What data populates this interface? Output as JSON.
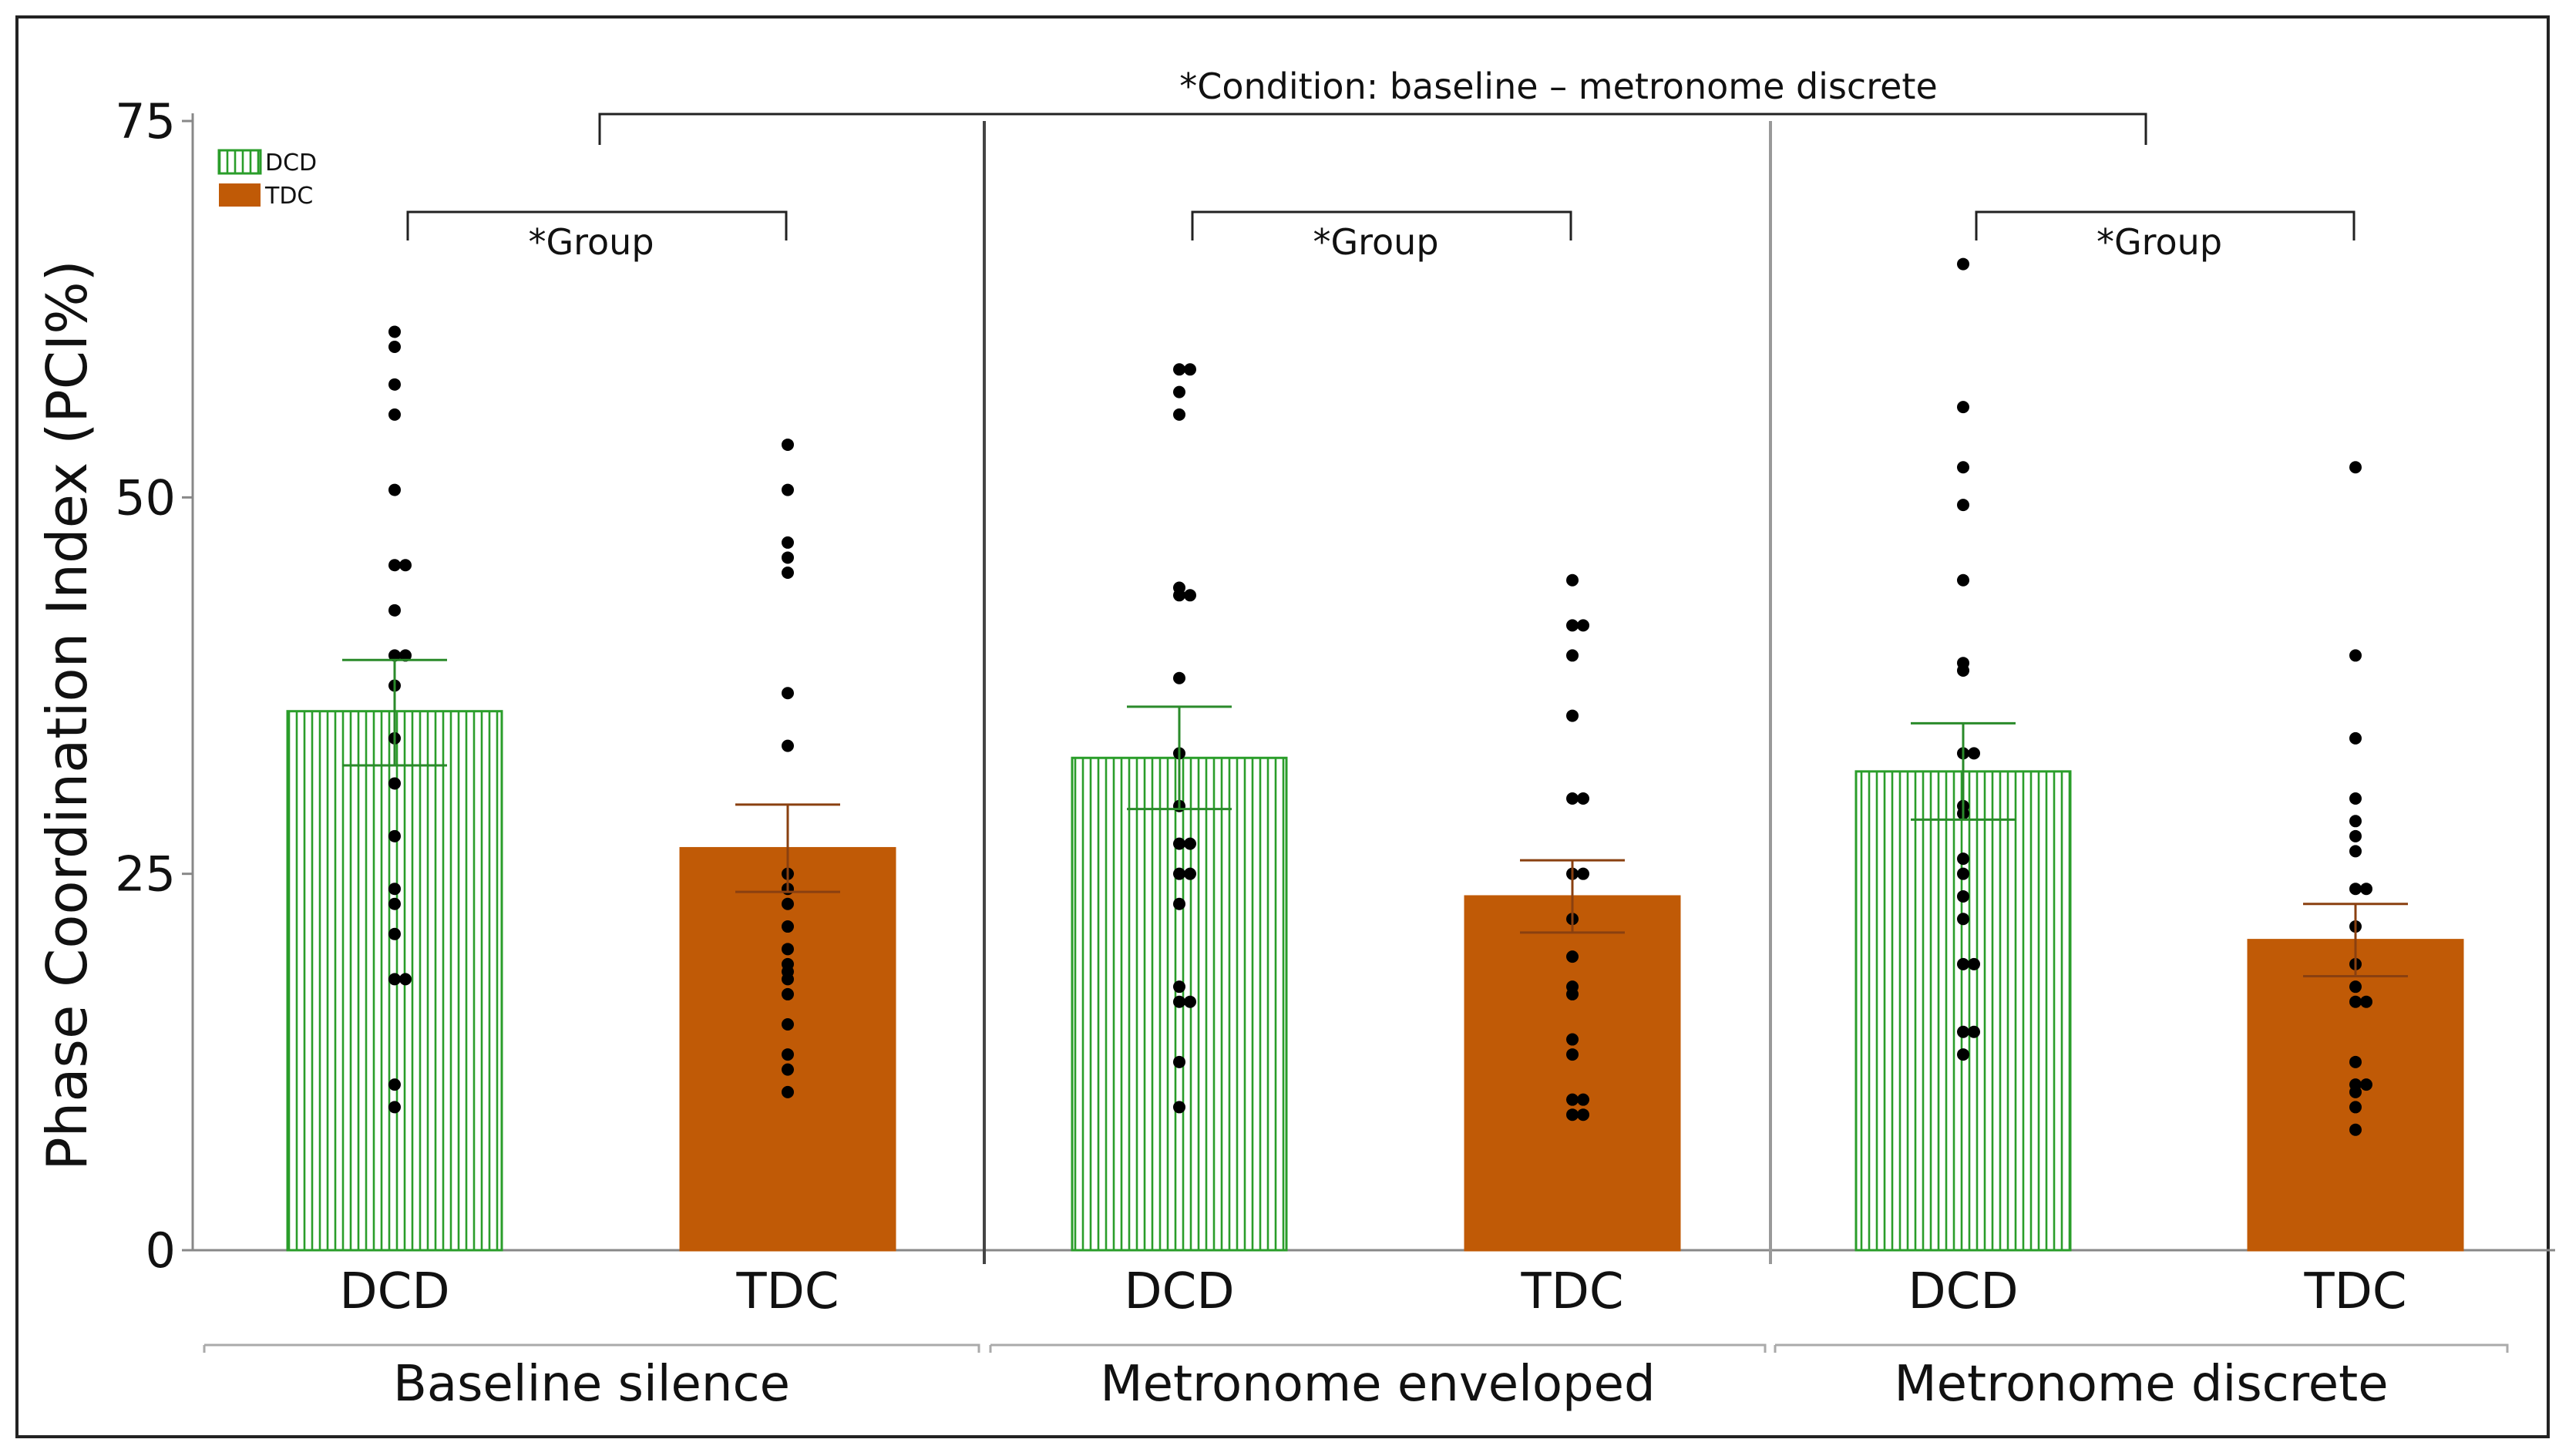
{
  "chart_data": {
    "type": "bar",
    "ylabel": "Phase Coordination Index (PCI%)",
    "xlabel": "",
    "ylim": [
      0,
      75
    ],
    "yticks": [
      "0",
      "25",
      "50",
      "75"
    ],
    "groups": [
      "Baseline silence",
      "Metronome enveloped",
      "Metronome discrete"
    ],
    "categories": [
      "DCD",
      "TDC"
    ],
    "legend": {
      "position": "top-left",
      "entries": [
        "DCD",
        "TDC"
      ]
    },
    "colors": {
      "DCD": "#2a9d2a",
      "TDC": "#c05a06"
    },
    "series": [
      {
        "name": "DCD",
        "means": [
          35.8,
          32.7,
          31.8
        ],
        "error_low": [
          32.2,
          29.3,
          28.6
        ],
        "error_high": [
          39.2,
          36.1,
          35.0
        ],
        "points": [
          [
            61,
            60,
            57.5,
            55.5,
            50.5,
            45.5,
            45.5,
            42.5,
            39.5,
            39.5,
            37.5,
            34,
            31,
            27.5,
            24,
            23,
            21,
            18,
            18,
            11,
            9.5
          ],
          [
            58.5,
            58.5,
            57,
            55.5,
            44,
            43.5,
            43.5,
            38,
            33,
            29.5,
            27,
            27,
            25,
            25,
            23,
            17.5,
            16.5,
            16.5,
            12.5,
            9.5
          ],
          [
            65.5,
            56,
            52,
            49.5,
            44.5,
            39,
            38.5,
            33,
            33,
            29.5,
            29,
            26,
            25,
            23.5,
            22,
            19,
            19,
            14.5,
            14.5,
            13
          ]
        ]
      },
      {
        "name": "TDC",
        "means": [
          26.7,
          23.5,
          20.6
        ],
        "error_low": [
          23.8,
          21.1,
          18.2
        ],
        "error_high": [
          29.6,
          25.9,
          23.0
        ],
        "points": [
          [
            53.5,
            50.5,
            47,
            46,
            45,
            37,
            33.5,
            25,
            24,
            23,
            21.5,
            20,
            19,
            18.5,
            18,
            17,
            15,
            13,
            12,
            10.5
          ],
          [
            44.5,
            41.5,
            41.5,
            39.5,
            35.5,
            30,
            30,
            25,
            25,
            22,
            19.5,
            17.5,
            17,
            14,
            13,
            10,
            10,
            9,
            9
          ],
          [
            52,
            39.5,
            34,
            30,
            28.5,
            27.5,
            26.5,
            24,
            24,
            21.5,
            19,
            17.5,
            16.5,
            16.5,
            12.5,
            11,
            11,
            10.5,
            9.5,
            8
          ]
        ]
      }
    ],
    "annotations": {
      "condition": "*Condition: baseline – metronome discrete",
      "group": "*Group"
    }
  }
}
